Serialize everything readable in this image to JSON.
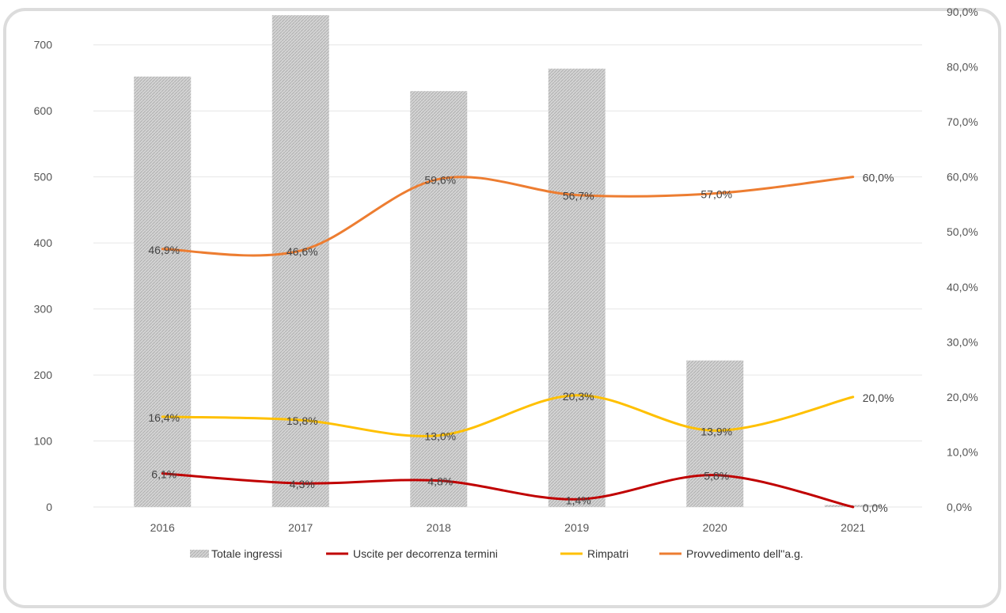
{
  "chart_data": {
    "type": "bar",
    "categories": [
      "2016",
      "2017",
      "2018",
      "2019",
      "2020",
      "2021"
    ],
    "y_left": {
      "lim": [
        0,
        750
      ],
      "ticks": [
        "0",
        "100",
        "200",
        "300",
        "400",
        "500",
        "600",
        "700"
      ]
    },
    "y_right": {
      "lim": [
        0,
        0.9
      ],
      "ticks": [
        "0,0%",
        "10,0%",
        "20,0%",
        "30,0%",
        "40,0%",
        "50,0%",
        "60,0%",
        "70,0%",
        "80,0%",
        "90,0%"
      ]
    },
    "bar_series": {
      "name": "Totale ingressi",
      "values": [
        652,
        745,
        630,
        664,
        222,
        3
      ],
      "color": "#c8c8c8"
    },
    "line_series": [
      {
        "name": "Uscite per decorrenza termini",
        "color": "#c00000",
        "values": [
          0.061,
          0.043,
          0.048,
          0.014,
          0.058,
          0.0
        ],
        "labels": [
          "6,1%",
          "4,3%",
          "4,8%",
          "1,4%",
          "5,8%",
          "0,0%"
        ]
      },
      {
        "name": "Rimpatri",
        "color": "#ffc000",
        "values": [
          0.164,
          0.158,
          0.13,
          0.203,
          0.139,
          0.2
        ],
        "labels": [
          "16,4%",
          "15,8%",
          "13,0%",
          "20,3%",
          "13,9%",
          "20,0%"
        ]
      },
      {
        "name": "Provvedimento dell''a.g.",
        "color": "#ed7d31",
        "values": [
          0.469,
          0.466,
          0.596,
          0.567,
          0.57,
          0.6
        ],
        "labels": [
          "46,9%",
          "46,6%",
          "59,6%",
          "56,7%",
          "57,0%",
          "60,0%"
        ]
      }
    ],
    "grid": true,
    "legend_position": "bottom"
  }
}
